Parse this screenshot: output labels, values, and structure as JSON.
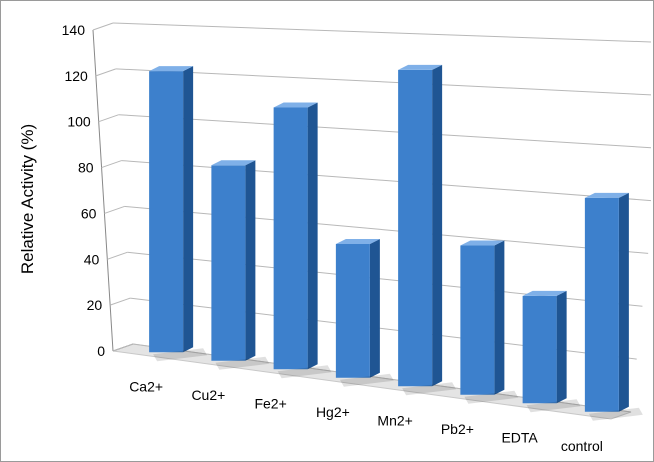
{
  "chart_data": {
    "type": "bar",
    "style": "3d-column",
    "title": "",
    "xlabel": "",
    "ylabel": "Relative Activity (%)",
    "categories": [
      "Ca2+",
      "Cu2+",
      "Fe2+",
      "Hg2+",
      "Mn2+",
      "Pb2+",
      "EDTA",
      "control"
    ],
    "values": [
      128,
      87,
      114,
      57,
      132,
      61,
      43,
      84
    ],
    "ylim": [
      0,
      140
    ],
    "yticks": [
      "0",
      "20",
      "40",
      "60",
      "80",
      "100",
      "120",
      "140"
    ],
    "grid": true,
    "legend": "none",
    "colors": {
      "bar_front": "#3d80cc",
      "bar_side": "#1f5593",
      "bar_top": "#7fb0e8",
      "gridline": "#b8b8b8",
      "floor": "#e4e4e4"
    }
  }
}
